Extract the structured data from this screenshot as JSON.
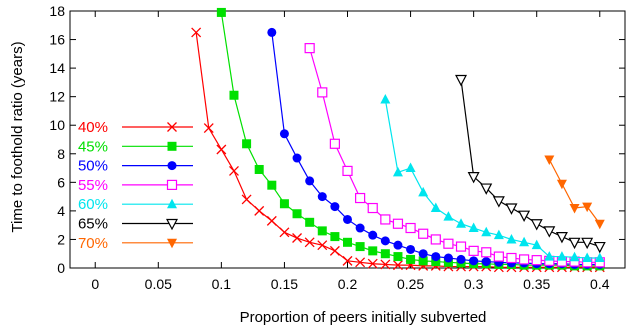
{
  "chart_data": {
    "type": "line",
    "title": "",
    "xlabel": "Proportion of peers initially subverted",
    "ylabel": "Time to foothold ratio (years)",
    "xlim": [
      -0.02,
      0.42
    ],
    "ylim": [
      0,
      18
    ],
    "xticks": [
      0,
      0.05,
      0.1,
      0.15,
      0.2,
      0.25,
      0.3,
      0.35,
      0.4
    ],
    "xtick_labels": [
      "0",
      "0.05",
      "0.1",
      "0.15",
      "0.2",
      "0.25",
      "0.3",
      "0.35",
      "0.4"
    ],
    "yticks": [
      0,
      2,
      4,
      6,
      8,
      10,
      12,
      14,
      16,
      18
    ],
    "ytick_labels": [
      "0",
      "2",
      "4",
      "6",
      "8",
      "10",
      "12",
      "14",
      "16",
      "18"
    ],
    "grid": false,
    "legend_position": "left",
    "series": [
      {
        "name": "40%",
        "color": "#ff0000",
        "marker": "x",
        "x": [
          0.08,
          0.09,
          0.1,
          0.11,
          0.12,
          0.13,
          0.14,
          0.15,
          0.16,
          0.17,
          0.18,
          0.19,
          0.2,
          0.21,
          0.22,
          0.23,
          0.24,
          0.25,
          0.26,
          0.27,
          0.28,
          0.29,
          0.3,
          0.31,
          0.32,
          0.33,
          0.34,
          0.35,
          0.36,
          0.37,
          0.38,
          0.39,
          0.4
        ],
        "y": [
          16.5,
          9.8,
          8.3,
          6.8,
          4.8,
          4.0,
          3.3,
          2.5,
          2.1,
          1.8,
          1.6,
          1.2,
          0.5,
          0.4,
          0.3,
          0.25,
          0.2,
          0.2,
          0.15,
          0.15,
          0.1,
          0.1,
          0.1,
          0.1,
          0.05,
          0.05,
          0.05,
          0.05,
          0.05,
          0.05,
          0.05,
          0.05,
          0.05
        ]
      },
      {
        "name": "45%",
        "color": "#00e000",
        "marker": "filled-square",
        "x": [
          0.1,
          0.11,
          0.12,
          0.13,
          0.14,
          0.15,
          0.16,
          0.17,
          0.18,
          0.19,
          0.2,
          0.21,
          0.22,
          0.23,
          0.24,
          0.25,
          0.26,
          0.27,
          0.28,
          0.29,
          0.3,
          0.31,
          0.32,
          0.33,
          0.34,
          0.35,
          0.36,
          0.37,
          0.38,
          0.39,
          0.4
        ],
        "y": [
          17.9,
          12.1,
          8.7,
          6.9,
          5.8,
          4.5,
          3.8,
          3.2,
          2.6,
          2.2,
          1.8,
          1.5,
          1.2,
          1.0,
          0.8,
          0.6,
          0.5,
          0.45,
          0.4,
          0.35,
          0.3,
          0.3,
          0.25,
          0.25,
          0.2,
          0.2,
          0.2,
          0.2,
          0.15,
          0.15,
          0.15
        ]
      },
      {
        "name": "50%",
        "color": "#0000ff",
        "marker": "filled-circle",
        "x": [
          0.14,
          0.15,
          0.16,
          0.17,
          0.18,
          0.19,
          0.2,
          0.21,
          0.22,
          0.23,
          0.24,
          0.25,
          0.26,
          0.27,
          0.28,
          0.29,
          0.3,
          0.31,
          0.32,
          0.33,
          0.34,
          0.35,
          0.36,
          0.37,
          0.38,
          0.39,
          0.4
        ],
        "y": [
          16.5,
          9.4,
          7.7,
          6.1,
          5.0,
          4.3,
          3.4,
          2.8,
          2.3,
          1.9,
          1.6,
          1.3,
          1.0,
          0.8,
          0.7,
          0.6,
          0.5,
          0.45,
          0.4,
          0.35,
          0.35,
          0.3,
          0.3,
          0.3,
          0.25,
          0.25,
          0.25
        ]
      },
      {
        "name": "55%",
        "color": "#ff00ff",
        "marker": "open-square",
        "x": [
          0.17,
          0.18,
          0.19,
          0.2,
          0.21,
          0.22,
          0.23,
          0.24,
          0.25,
          0.26,
          0.27,
          0.28,
          0.29,
          0.3,
          0.31,
          0.32,
          0.33,
          0.34,
          0.35,
          0.36,
          0.37,
          0.38,
          0.39,
          0.4
        ],
        "y": [
          15.4,
          12.3,
          8.7,
          6.8,
          4.9,
          4.2,
          3.4,
          3.1,
          2.8,
          2.4,
          2.0,
          1.7,
          1.5,
          1.2,
          1.1,
          0.8,
          0.7,
          0.6,
          0.55,
          0.5,
          0.45,
          0.45,
          0.4,
          0.4
        ]
      },
      {
        "name": "60%",
        "color": "#00e5ee",
        "marker": "filled-triangle",
        "x": [
          0.23,
          0.24,
          0.25,
          0.26,
          0.27,
          0.28,
          0.29,
          0.3,
          0.31,
          0.32,
          0.33,
          0.34,
          0.35,
          0.36,
          0.37,
          0.38,
          0.39,
          0.4
        ],
        "y": [
          11.8,
          6.7,
          7.0,
          5.3,
          4.2,
          3.6,
          3.1,
          2.8,
          2.5,
          2.3,
          2.0,
          1.8,
          1.6,
          0.8,
          0.8,
          0.75,
          0.7,
          0.7
        ]
      },
      {
        "name": "65%",
        "color": "#000000",
        "marker": "open-triangle-down",
        "x": [
          0.29,
          0.3,
          0.31,
          0.32,
          0.33,
          0.34,
          0.35,
          0.36,
          0.37,
          0.38,
          0.39,
          0.4
        ],
        "y": [
          13.2,
          6.4,
          5.6,
          4.7,
          4.2,
          3.7,
          3.1,
          2.6,
          2.2,
          1.8,
          1.8,
          1.5
        ]
      },
      {
        "name": "70%",
        "color": "#ff6600",
        "marker": "filled-triangle-down",
        "x": [
          0.36,
          0.37,
          0.38,
          0.39,
          0.4
        ],
        "y": [
          7.6,
          5.9,
          4.2,
          4.3,
          3.1
        ]
      }
    ]
  }
}
